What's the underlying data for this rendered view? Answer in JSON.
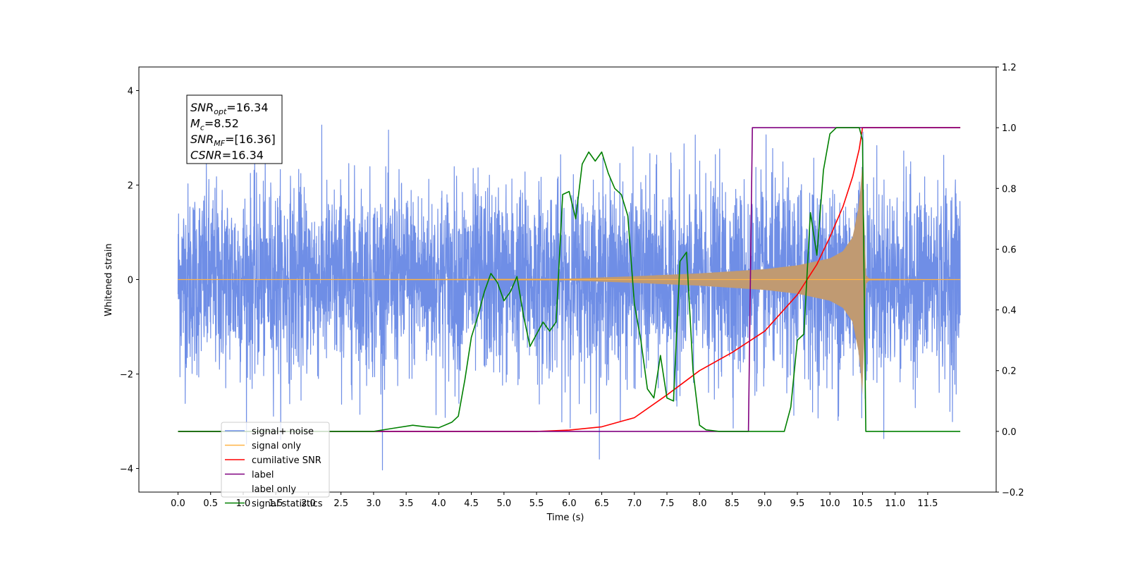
{
  "chart_data": {
    "type": "line",
    "title": "",
    "xlabel": "Time (s)",
    "ylabel_left": "Whitened strain",
    "ylabel_right": "",
    "xlim": [
      -0.6,
      12.55
    ],
    "ylim_left": [
      -4.5,
      4.5
    ],
    "ylim_right": [
      -0.2,
      1.2
    ],
    "x_ticks": [
      "0.0",
      "0.5",
      "1.0",
      "1.5",
      "2.0",
      "2.5",
      "3.0",
      "3.5",
      "4.0",
      "4.5",
      "5.0",
      "5.5",
      "6.0",
      "6.5",
      "7.0",
      "7.5",
      "8.0",
      "8.5",
      "9.0",
      "9.5",
      "10.0",
      "10.5",
      "11.0",
      "11.5"
    ],
    "y_ticks_left": [
      "−4",
      "−2",
      "0",
      "2",
      "4"
    ],
    "y_ticks_right": [
      "−0.2",
      "0.0",
      "0.2",
      "0.4",
      "0.6",
      "0.8",
      "1.0",
      "1.2"
    ],
    "legend_position": "lower-left",
    "legend": [
      {
        "label": "signal+ noise",
        "color": "#6f8ee6"
      },
      {
        "label": "signal only",
        "color": "#ffb347"
      },
      {
        "label": "cumilative SNR",
        "color": "#ff0000"
      },
      {
        "label": "label",
        "color": "#800080"
      },
      {
        "label": "label only",
        "color": "#c8c8c8"
      },
      {
        "label": "signal statistics",
        "color": "#008000"
      }
    ],
    "annotation": {
      "lines": [
        {
          "base": "SNR",
          "sub": "opt",
          "text": "=16.34"
        },
        {
          "base": "M",
          "sub": "c",
          "text": "=8.52"
        },
        {
          "base": "SNR",
          "sub": "MF",
          "text": "=[16.36]"
        },
        {
          "base": "CSNR",
          "sub": "",
          "text": "=16.34"
        }
      ]
    },
    "noise": {
      "x_range": [
        0.0,
        12.0
      ],
      "amplitude_typical": 1.0,
      "amplitude_max": 4.1
    },
    "signal_only": {
      "x": [
        0.0,
        6.0,
        7.0,
        8.0,
        9.0,
        9.5,
        10.0,
        10.2,
        10.35,
        10.45,
        10.5,
        10.55,
        10.6,
        12.0
      ],
      "envelope": [
        0.0,
        0.02,
        0.07,
        0.13,
        0.22,
        0.3,
        0.45,
        0.6,
        0.9,
        1.6,
        2.5,
        0.1,
        0.02,
        0.0
      ]
    },
    "series": [
      {
        "name": "cumilative SNR",
        "axis": "right",
        "color": "#ff0000",
        "x": [
          0.0,
          5.5,
          6.0,
          6.5,
          7.0,
          7.5,
          8.0,
          8.5,
          9.0,
          9.5,
          9.8,
          10.0,
          10.2,
          10.35,
          10.45,
          10.5,
          10.55,
          12.0
        ],
        "y": [
          0.0,
          0.0,
          0.004,
          0.015,
          0.045,
          0.12,
          0.2,
          0.26,
          0.33,
          0.45,
          0.55,
          0.64,
          0.74,
          0.84,
          0.93,
          1.0,
          1.0,
          1.0
        ]
      },
      {
        "name": "label",
        "axis": "right",
        "color": "#800080",
        "x": [
          0.0,
          8.75,
          8.81,
          10.5,
          10.5,
          12.0
        ],
        "y": [
          0.0,
          0.0,
          1.0,
          1.0,
          1.0,
          1.0
        ]
      },
      {
        "name": "signal statistics",
        "axis": "right",
        "color": "#008000",
        "x": [
          0.0,
          3.0,
          3.3,
          3.6,
          3.8,
          4.0,
          4.2,
          4.3,
          4.4,
          4.5,
          4.6,
          4.7,
          4.8,
          4.9,
          5.0,
          5.1,
          5.2,
          5.3,
          5.4,
          5.5,
          5.6,
          5.7,
          5.8,
          5.9,
          6.0,
          6.1,
          6.2,
          6.3,
          6.4,
          6.5,
          6.6,
          6.7,
          6.8,
          6.9,
          7.0,
          7.1,
          7.2,
          7.3,
          7.4,
          7.5,
          7.6,
          7.7,
          7.8,
          7.9,
          8.0,
          8.1,
          8.3,
          9.0,
          9.3,
          9.4,
          9.5,
          9.6,
          9.7,
          9.8,
          9.9,
          10.0,
          10.1,
          10.3,
          10.45,
          10.5,
          10.55,
          10.6,
          12.0
        ],
        "y": [
          0.0,
          0.0,
          0.01,
          0.02,
          0.015,
          0.012,
          0.03,
          0.05,
          0.17,
          0.31,
          0.38,
          0.46,
          0.52,
          0.49,
          0.43,
          0.46,
          0.51,
          0.38,
          0.28,
          0.32,
          0.36,
          0.33,
          0.36,
          0.78,
          0.79,
          0.7,
          0.88,
          0.92,
          0.89,
          0.92,
          0.85,
          0.8,
          0.78,
          0.71,
          0.42,
          0.3,
          0.14,
          0.11,
          0.25,
          0.11,
          0.1,
          0.56,
          0.59,
          0.2,
          0.02,
          0.005,
          0.0,
          0.0,
          0.0,
          0.08,
          0.3,
          0.32,
          0.72,
          0.58,
          0.86,
          0.98,
          1.0,
          1.0,
          1.0,
          0.96,
          0.0,
          0.0,
          0.0
        ]
      }
    ]
  }
}
